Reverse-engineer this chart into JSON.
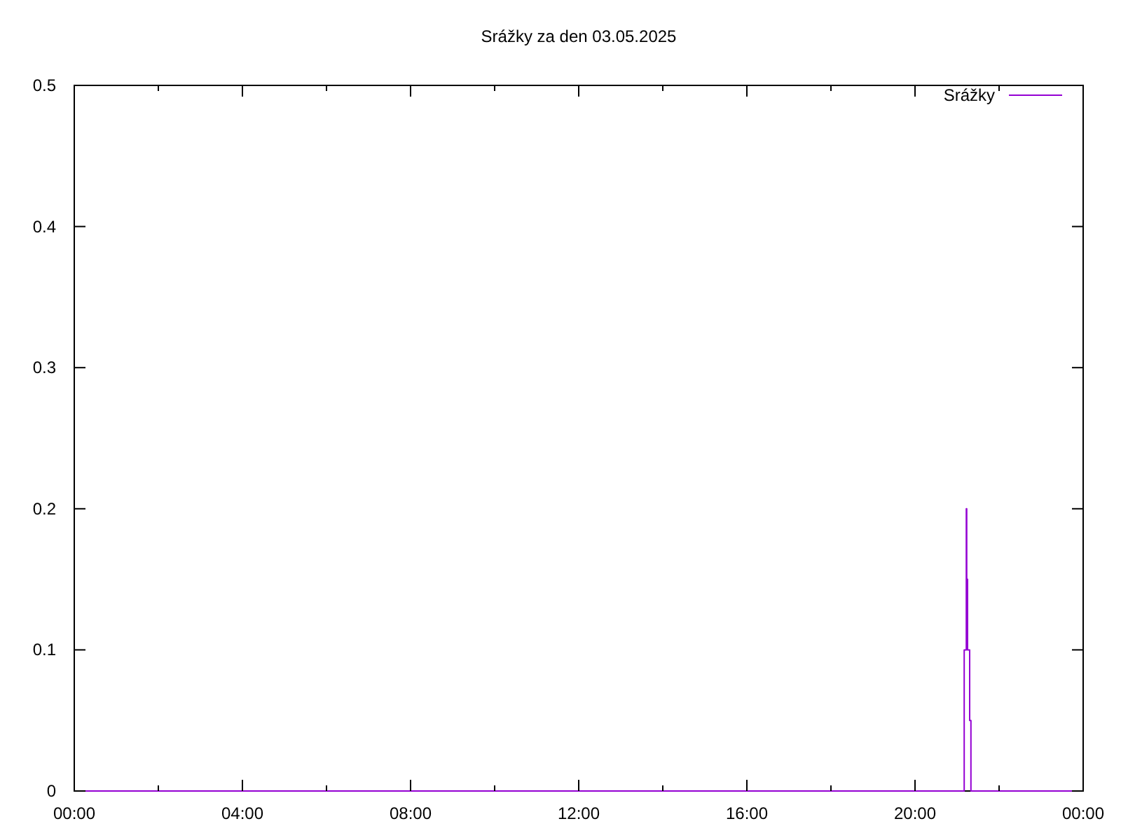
{
  "chart_data": {
    "type": "step",
    "title": "Srážky za den 03.05.2025",
    "x": [
      0,
      21.17,
      21.22,
      21.23,
      21.25,
      21.3,
      21.33,
      24
    ],
    "series": [
      {
        "name": "Srážky",
        "color": "#9400d3",
        "values": [
          0,
          0.1,
          0.2,
          0.15,
          0.1,
          0.05,
          0,
          0
        ]
      }
    ],
    "xlim": [
      0,
      24
    ],
    "xticks": [
      {
        "value": 0,
        "label": "00:00"
      },
      {
        "value": 2,
        "label": null
      },
      {
        "value": 4,
        "label": "04:00"
      },
      {
        "value": 6,
        "label": null
      },
      {
        "value": 8,
        "label": "08:00"
      },
      {
        "value": 10,
        "label": null
      },
      {
        "value": 12,
        "label": "12:00"
      },
      {
        "value": 14,
        "label": null
      },
      {
        "value": 16,
        "label": "16:00"
      },
      {
        "value": 18,
        "label": null
      },
      {
        "value": 20,
        "label": "20:00"
      },
      {
        "value": 22,
        "label": null
      },
      {
        "value": 24,
        "label": "00:00"
      }
    ],
    "ylim": [
      0,
      0.5
    ],
    "yticks": [
      0,
      0.1,
      0.2,
      0.3,
      0.4,
      0.5
    ],
    "legend": "top right",
    "grid": false
  }
}
